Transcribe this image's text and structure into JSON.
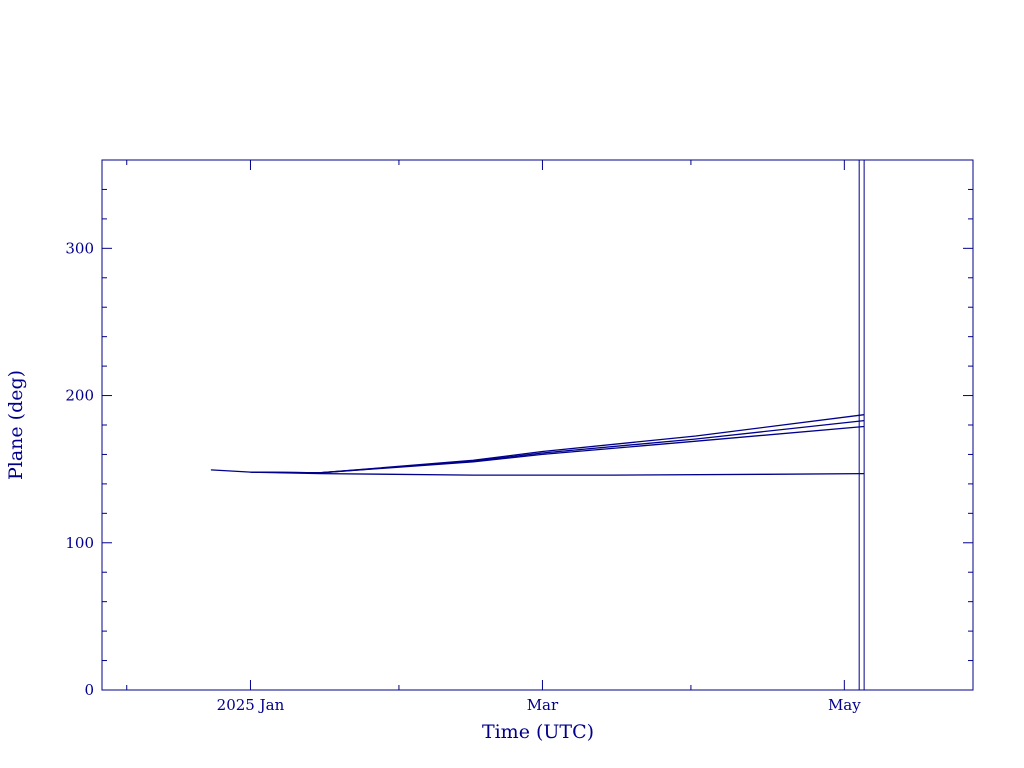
{
  "colors": {
    "axis": "#00008b",
    "series": "#00008b",
    "background": "#ffffff"
  },
  "chart_data": {
    "type": "line",
    "title": "",
    "xlabel": "Time (UTC)",
    "ylabel": "Plane (deg)",
    "x_unit": "date",
    "xlim": [
      "2024-12-02",
      "2025-05-27"
    ],
    "ylim": [
      0,
      360
    ],
    "x_ticks": [
      {
        "date": "2025-01-01",
        "label": "2025 Jan"
      },
      {
        "date": "2025-03-01",
        "label": "Mar"
      },
      {
        "date": "2025-05-01",
        "label": "May"
      }
    ],
    "x_minor_ticks": [
      "2024-12-07",
      "2025-01-31",
      "2025-03-31",
      "2025-05-31"
    ],
    "y_ticks": [
      {
        "value": 0,
        "label": "0"
      },
      {
        "value": 100,
        "label": "100"
      },
      {
        "value": 200,
        "label": "200"
      },
      {
        "value": 300,
        "label": "300"
      }
    ],
    "grid": false,
    "legend": "none",
    "series": [
      {
        "x": [
          "2024-12-24",
          "2025-01-01",
          "2025-01-15",
          "2025-02-15",
          "2025-03-15",
          "2025-04-15",
          "2025-05-05"
        ],
        "y": [
          149.5,
          148.0,
          147.0,
          146.0,
          146.0,
          146.5,
          147.0
        ]
      },
      {
        "x": [
          "2025-01-01",
          "2025-01-15",
          "2025-02-15",
          "2025-03-01",
          "2025-04-01",
          "2025-05-05"
        ],
        "y": [
          148.0,
          147.5,
          155.0,
          160.0,
          169.0,
          179.0
        ]
      },
      {
        "x": [
          "2025-01-01",
          "2025-01-15",
          "2025-02-15",
          "2025-03-01",
          "2025-04-01",
          "2025-05-05"
        ],
        "y": [
          148.0,
          147.5,
          155.5,
          161.0,
          170.5,
          183.0
        ]
      },
      {
        "x": [
          "2025-01-01",
          "2025-01-15",
          "2025-02-15",
          "2025-03-01",
          "2025-04-01",
          "2025-05-05"
        ],
        "y": [
          148.0,
          147.5,
          156.0,
          162.0,
          172.5,
          187.0
        ]
      }
    ],
    "vertical_markers": [
      {
        "date": "2025-05-04",
        "y_range": [
          0,
          360
        ]
      },
      {
        "date": "2025-05-05",
        "y_range": [
          0,
          360
        ]
      }
    ]
  }
}
